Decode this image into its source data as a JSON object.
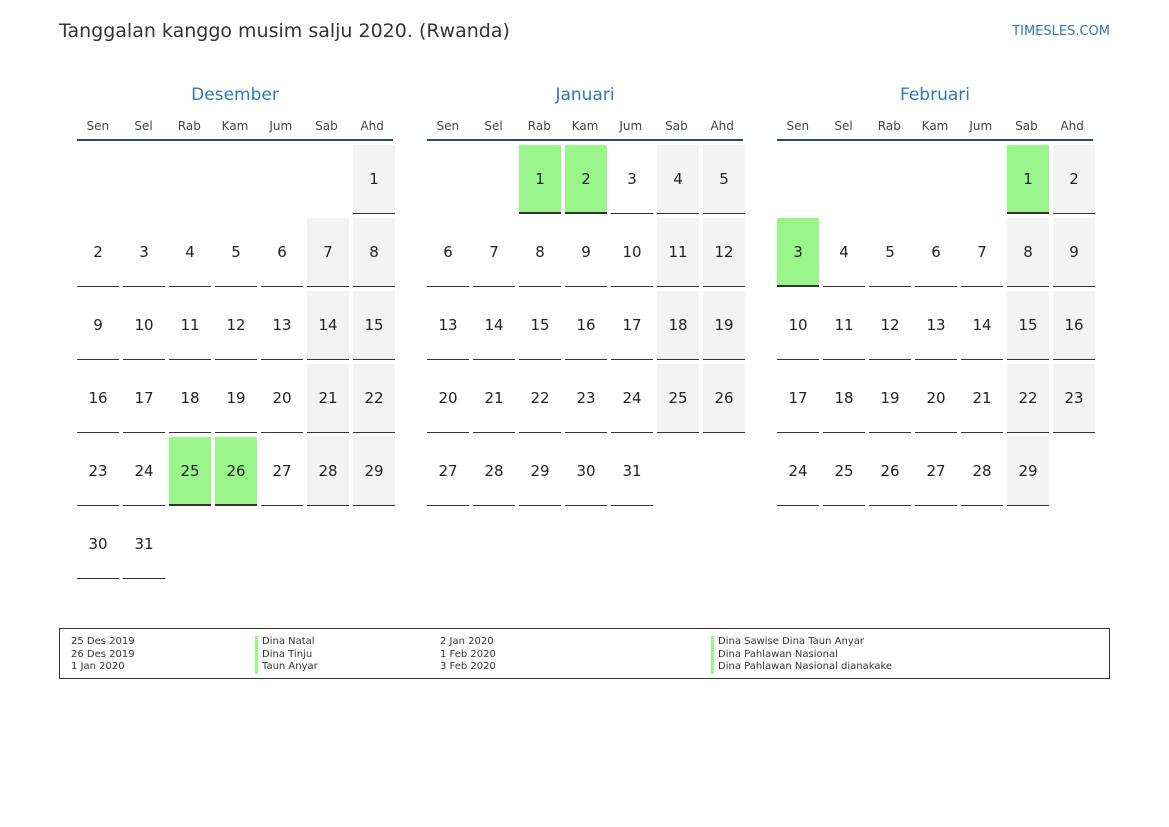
{
  "header": {
    "title": "Tanggalan kanggo musim salju 2020. (Rwanda)",
    "site": "TIMESLES.COM"
  },
  "weekdays": [
    "Sen",
    "Sel",
    "Rab",
    "Kam",
    "Jum",
    "Sab",
    "Ahd"
  ],
  "colors": {
    "accent": "#2e78b8",
    "holiday": "#9af58a",
    "weekend": "#f3f3f3",
    "rule": "#2c4a63"
  },
  "months": [
    {
      "name": "Desember",
      "start_offset": 6,
      "days": 31,
      "holidays": [
        25,
        26
      ]
    },
    {
      "name": "Januari",
      "start_offset": 2,
      "days": 31,
      "holidays": [
        1,
        2
      ]
    },
    {
      "name": "Februari",
      "start_offset": 5,
      "days": 29,
      "holidays": [
        1,
        3
      ]
    }
  ],
  "legend": {
    "left": [
      {
        "date": "25 Des 2019",
        "name": "Dina Natal"
      },
      {
        "date": "26 Des 2019",
        "name": "Dina Tinju"
      },
      {
        "date": "1 Jan 2020",
        "name": "Taun Anyar"
      }
    ],
    "right": [
      {
        "date": "2 Jan 2020",
        "name": "Dina Sawise Dina Taun Anyar"
      },
      {
        "date": "1 Feb 2020",
        "name": "Dina Pahlawan Nasional"
      },
      {
        "date": "3 Feb 2020",
        "name": "Dina Pahlawan Nasional dianakake"
      }
    ]
  }
}
